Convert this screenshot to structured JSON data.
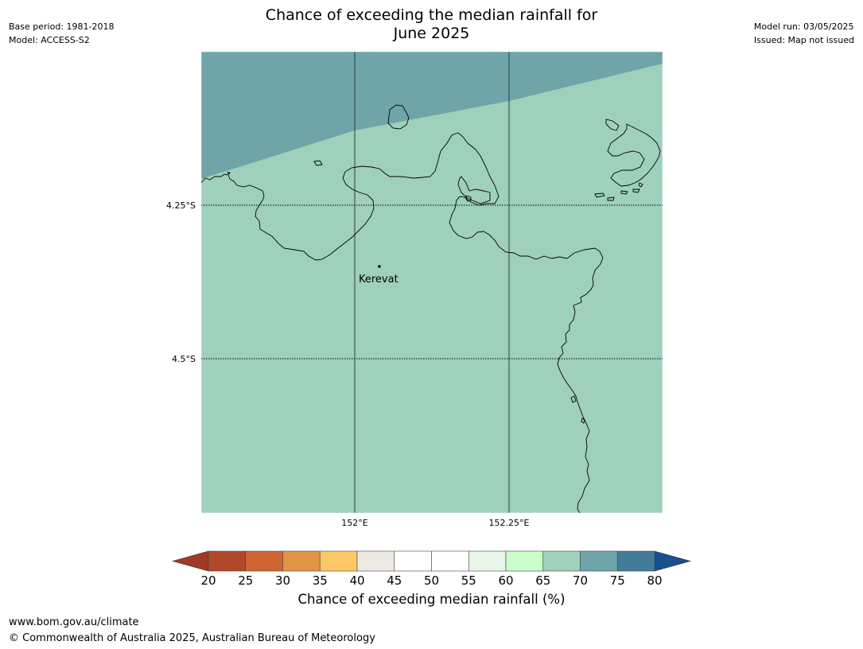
{
  "header": {
    "title_line1": "Chance of exceeding the median rainfall for",
    "title_line2": "June 2025",
    "base_period": "Base period: 1981-2018",
    "model": "Model: ACCESS-S2",
    "model_run": "Model run: 03/05/2025",
    "issued": "Issued: Map not issued"
  },
  "map": {
    "lat_labels": [
      "4.25°S",
      "4.5°S"
    ],
    "lon_labels": [
      "152°E",
      "152.25°E"
    ],
    "place": "Kerevat",
    "colors": {
      "zone_65_70": "#9fd0bb",
      "zone_70_75": "#6fa4a8",
      "coast": "#000000",
      "grid": "#2b3f3a"
    }
  },
  "colorbar": {
    "ticks": [
      "20",
      "25",
      "30",
      "35",
      "40",
      "45",
      "50",
      "55",
      "60",
      "65",
      "70",
      "75",
      "80"
    ],
    "colors": [
      "#b0482a",
      "#cd6432",
      "#e29445",
      "#fec866",
      "#ede9e4",
      "#ffffff",
      "#ffffff",
      "#e7f6e7",
      "#caffcb",
      "#9fd0bb",
      "#6fa4a8",
      "#437b9b"
    ],
    "under_color": "#9e3a25",
    "over_color": "#174f8f",
    "label": "Chance of exceeding median rainfall (%)"
  },
  "footer": {
    "url": "www.bom.gov.au/climate",
    "copyright": "© Commonwealth of Australia 2025, Australian Bureau of Meteorology"
  }
}
